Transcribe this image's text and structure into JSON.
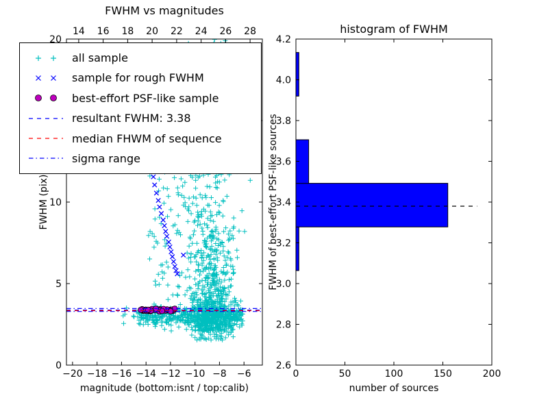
{
  "chart_data": [
    {
      "type": "scatter",
      "title": "FWHM vs magnitudes",
      "xlabel": "magnitude (bottom:isnt / top:calib)",
      "ylabel": "FWHM (pix)",
      "xlim": [
        -20.5,
        -4.5
      ],
      "ylim": [
        0,
        20
      ],
      "top_xlim": [
        13.0,
        29.0
      ],
      "xticks": {
        "values": [
          -20,
          -18,
          -16,
          -14,
          -12,
          -10,
          -8,
          -6
        ],
        "labels": [
          "−20",
          "−18",
          "−16",
          "−14",
          "−12",
          "−10",
          "−8",
          "−6"
        ]
      },
      "yticks": {
        "values": [
          0,
          5,
          10,
          15,
          20
        ],
        "labels": [
          "0",
          "5",
          "10",
          "15",
          "20"
        ]
      },
      "top_xticks": {
        "values": [
          14,
          16,
          18,
          20,
          22,
          24,
          26,
          28
        ],
        "labels": [
          "14",
          "16",
          "18",
          "20",
          "22",
          "24",
          "26",
          "28"
        ]
      },
      "series": [
        {
          "name": "all sample",
          "marker": "plus",
          "color": "#00bfbf",
          "cloud": [
            {
              "n": 600,
              "x": {
                "dist": "normal",
                "mean": -8.55,
                "sd": 0.8
              },
              "y": {
                "dist": "exp",
                "base": 2.1,
                "scale": 2.3,
                "max": 20
              }
            },
            {
              "n": 220,
              "x": {
                "dist": "normal",
                "mean": -8.6,
                "sd": 1.15
              },
              "y": {
                "dist": "uniform",
                "min": 2.2,
                "max": 20
              }
            },
            {
              "n": 480,
              "x": {
                "dist": "uniform",
                "min": -14.6,
                "max": -6.1
              },
              "y": {
                "dist": "normal",
                "mean": 3.02,
                "sd": 0.3
              }
            },
            {
              "n": 110,
              "x": {
                "dist": "uniform",
                "min": -13.9,
                "max": -9.7
              },
              "y": {
                "dist": "uniform",
                "min": 3.6,
                "max": 13.5
              }
            },
            {
              "n": 55,
              "x": {
                "dist": "uniform",
                "min": -12.6,
                "max": -7.2
              },
              "y": {
                "dist": "uniform",
                "min": 13.5,
                "max": 19.9
              }
            },
            {
              "n": 8,
              "x": {
                "dist": "uniform",
                "min": -16.0,
                "max": -14.6
              },
              "y": {
                "dist": "normal",
                "mean": 3.15,
                "sd": 0.35
              }
            },
            {
              "n": 45,
              "x": {
                "dist": "normal",
                "mean": -8.4,
                "sd": 1.0
              },
              "y": {
                "dist": "uniform",
                "min": 1.5,
                "max": 2.3
              }
            }
          ]
        },
        {
          "name": "sample for rough FWHM",
          "marker": "x",
          "color": "#0000ff",
          "points": [
            [
              -13.55,
              12.1
            ],
            [
              -13.4,
              11.55
            ],
            [
              -13.3,
              11.05
            ],
            [
              -13.15,
              10.55
            ],
            [
              -13.0,
              10.1
            ],
            [
              -12.9,
              9.7
            ],
            [
              -12.75,
              9.3
            ],
            [
              -12.6,
              8.9
            ],
            [
              -12.5,
              8.55
            ],
            [
              -12.4,
              8.2
            ],
            [
              -12.3,
              7.9
            ],
            [
              -12.15,
              7.55
            ],
            [
              -12.05,
              7.25
            ],
            [
              -11.95,
              6.95
            ],
            [
              -11.85,
              6.65
            ],
            [
              -11.75,
              6.35
            ],
            [
              -11.65,
              6.05
            ],
            [
              -11.55,
              5.8
            ],
            [
              -11.45,
              5.6
            ],
            [
              -10.95,
              6.75
            ]
          ]
        },
        {
          "name": "best-effort PSF-like sample",
          "marker": "circle",
          "color": "#bf00bf",
          "edge": "#000000",
          "cloud": [
            {
              "n": 40,
              "x": {
                "dist": "uniform",
                "min": -14.55,
                "max": -11.65
              },
              "y": {
                "dist": "normal",
                "mean": 3.38,
                "sd": 0.055
              }
            }
          ]
        }
      ],
      "lines": [
        {
          "name": "resultant FWHM",
          "value": 3.38,
          "y": 3.38,
          "color": "#0000ff",
          "style": "dashed"
        },
        {
          "name": "median FHWM of sequence",
          "y": 3.34,
          "color": "#ff0000",
          "style": "dashed"
        },
        {
          "name": "sigma range",
          "y": [
            3.29,
            3.47
          ],
          "color": "#0000ff",
          "style": "dashdot"
        }
      ],
      "legend": [
        {
          "label": "all sample",
          "kind": "marker",
          "marker": "plus",
          "color": "#00bfbf"
        },
        {
          "label": "sample for rough FWHM",
          "kind": "marker",
          "marker": "x",
          "color": "#0000ff"
        },
        {
          "label": "best-effort PSF-like sample",
          "kind": "marker",
          "marker": "circle",
          "color": "#bf00bf"
        },
        {
          "label": "resultant FWHM: 3.38",
          "kind": "line",
          "style": "dashed",
          "color": "#0000ff"
        },
        {
          "label": "median FHWM of sequence",
          "kind": "line",
          "style": "dashed",
          "color": "#ff0000"
        },
        {
          "label": "sigma range",
          "kind": "line",
          "style": "dashdot",
          "color": "#0000ff"
        }
      ]
    },
    {
      "type": "bar",
      "orientation": "horizontal",
      "title": "histogram of FWHM",
      "xlabel": "number of sources",
      "ylabel": "FWHM of best-effort PSF-like sources",
      "xlim": [
        0,
        200
      ],
      "ylim": [
        2.6,
        4.2
      ],
      "xticks": {
        "values": [
          0,
          50,
          100,
          150,
          200
        ],
        "labels": [
          "0",
          "50",
          "100",
          "150",
          "200"
        ]
      },
      "yticks": {
        "values": [
          2.6,
          2.8,
          3.0,
          3.2,
          3.4,
          3.6,
          3.8,
          4.0,
          4.2
        ],
        "labels": [
          "2.6",
          "2.8",
          "3.0",
          "3.2",
          "3.4",
          "3.6",
          "3.8",
          "4.0",
          "4.2"
        ]
      },
      "bar_color": "#0000ff",
      "bar_edge": "#000000",
      "bins": [
        {
          "from": 3.064,
          "to": 3.278,
          "count": 3
        },
        {
          "from": 3.278,
          "to": 3.492,
          "count": 155
        },
        {
          "from": 3.492,
          "to": 3.706,
          "count": 13
        },
        {
          "from": 3.706,
          "to": 3.92,
          "count": 0
        },
        {
          "from": 3.92,
          "to": 4.134,
          "count": 3
        }
      ],
      "median_line": {
        "y": 3.38,
        "x_from": 0,
        "x_to": 185,
        "color": "#000000",
        "style": "dashed"
      }
    }
  ]
}
